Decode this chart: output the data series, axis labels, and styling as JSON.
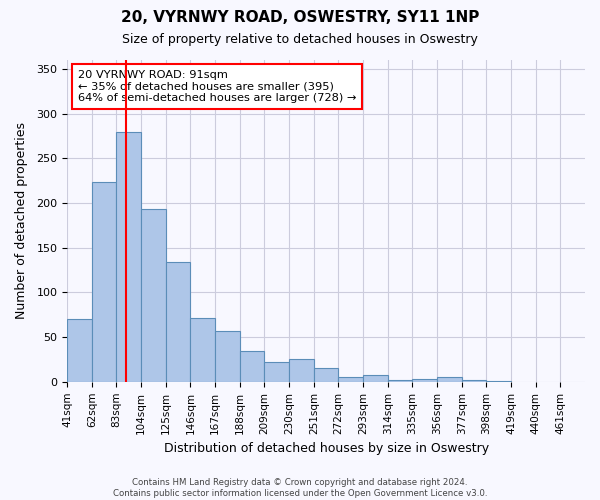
{
  "title": "20, VYRNWY ROAD, OSWESTRY, SY11 1NP",
  "subtitle": "Size of property relative to detached houses in Oswestry",
  "xlabel": "Distribution of detached houses by size in Oswestry",
  "ylabel": "Number of detached properties",
  "bar_values": [
    70,
    224,
    279,
    193,
    134,
    71,
    57,
    34,
    22,
    25,
    15,
    5,
    8,
    2,
    3,
    5,
    2,
    1
  ],
  "bin_labels": [
    "41sqm",
    "62sqm",
    "83sqm",
    "104sqm",
    "125sqm",
    "146sqm",
    "167sqm",
    "188sqm",
    "209sqm",
    "230sqm",
    "251sqm",
    "272sqm",
    "293sqm",
    "314sqm",
    "335sqm",
    "356sqm",
    "377sqm",
    "398sqm",
    "419sqm",
    "440sqm",
    "461sqm"
  ],
  "bar_color": "#aec6e8",
  "bar_edge_color": "#5b8db8",
  "red_line_x": 91,
  "bin_edges": [
    41,
    62,
    83,
    104,
    125,
    146,
    167,
    188,
    209,
    230,
    251,
    272,
    293,
    314,
    335,
    356,
    377,
    398,
    419,
    440,
    461
  ],
  "bin_width": 21,
  "ylim": [
    0,
    360
  ],
  "yticks": [
    0,
    50,
    100,
    150,
    200,
    250,
    300,
    350
  ],
  "annotation_title": "20 VYRNWY ROAD: 91sqm",
  "annotation_line1": "← 35% of detached houses are smaller (395)",
  "annotation_line2": "64% of semi-detached houses are larger (728) →",
  "footer_line1": "Contains HM Land Registry data © Crown copyright and database right 2024.",
  "footer_line2": "Contains public sector information licensed under the Open Government Licence v3.0.",
  "background_color": "#f8f8ff",
  "grid_color": "#ccccdd"
}
